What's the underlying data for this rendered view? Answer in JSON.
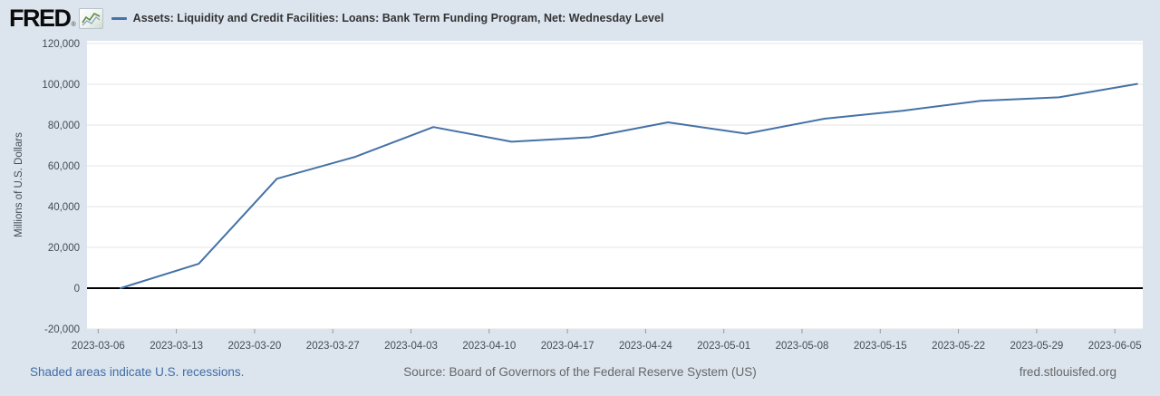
{
  "header": {
    "logo_text": "FRED",
    "registered_mark": "®",
    "legend_label": "Assets: Liquidity and Credit Facilities: Loans: Bank Term Funding Program, Net: Wednesday Level"
  },
  "chart_data": {
    "type": "line",
    "title": "Assets: Liquidity and Credit Facilities: Loans: Bank Term Funding Program, Net: Wednesday Level",
    "ylabel": "Millions of U.S. Dollars",
    "xlabel": "",
    "x": [
      "2023-03-08",
      "2023-03-15",
      "2023-03-22",
      "2023-03-29",
      "2023-04-05",
      "2023-04-12",
      "2023-04-19",
      "2023-04-26",
      "2023-05-03",
      "2023-05-10",
      "2023-05-17",
      "2023-05-24",
      "2023-05-31",
      "2023-06-07"
    ],
    "values": [
      0,
      11943,
      53669,
      64403,
      79021,
      71837,
      73982,
      81327,
      75778,
      83101,
      87006,
      91907,
      93615,
      100161
    ],
    "x_tick_labels": [
      "2023-03-06",
      "2023-03-13",
      "2023-03-20",
      "2023-03-27",
      "2023-04-03",
      "2023-04-10",
      "2023-04-17",
      "2023-04-24",
      "2023-05-01",
      "2023-05-08",
      "2023-05-15",
      "2023-05-22",
      "2023-05-29",
      "2023-06-05"
    ],
    "y_ticks": [
      -20000,
      0,
      20000,
      40000,
      60000,
      80000,
      100000,
      120000
    ],
    "y_tick_labels": [
      "-20,000",
      "0",
      "20,000",
      "40,000",
      "60,000",
      "80,000",
      "100,000",
      "120,000"
    ],
    "ylim": [
      -20000,
      120000
    ],
    "x_range": {
      "start": "2023-03-05T00:00:00Z",
      "end": "2023-06-07T12:00:00Z"
    },
    "grid": "horizontal",
    "legend_position": "top"
  },
  "colors": {
    "background": "#dce5ee",
    "plot_background": "#ffffff",
    "line": "#4572a7",
    "gridline": "#e6e6e6",
    "zero_line": "#000000",
    "axis_text": "#444b55",
    "tick_mark": "#999999",
    "footer_link": "#3f6ca6",
    "footer_text": "#666666"
  },
  "footer": {
    "recessions_note": "Shaded areas indicate U.S. recessions.",
    "source": "Source: Board of Governors of the Federal Reserve System (US)",
    "site": "fred.stlouisfed.org"
  }
}
